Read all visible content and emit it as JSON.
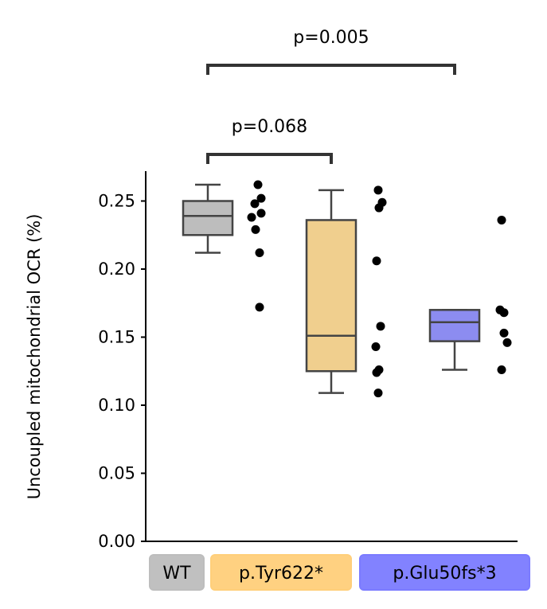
{
  "chart_data": {
    "type": "box",
    "ylabel": "Uncoupled mitochondrial OCR (%)",
    "xlabel": "",
    "ylim": [
      0.0,
      0.27
    ],
    "yticks": [
      "0.00",
      "0.05",
      "0.10",
      "0.15",
      "0.20",
      "0.25"
    ],
    "grid": false,
    "categories": [
      {
        "label": "WT",
        "box_color": "#bdbdbd",
        "tag_color": "#bdbdbd"
      },
      {
        "label": "p.Tyr622*",
        "box_color": "#f0cf8e",
        "tag_color": "#ffcf7a"
      },
      {
        "label": "p.Glu50fs*3",
        "box_color": "#8c8cf0",
        "tag_color": "#7b7bff"
      }
    ],
    "boxes": [
      {
        "q1": 0.225,
        "median": 0.239,
        "q3": 0.25,
        "whisker_low": 0.212,
        "whisker_high": 0.262
      },
      {
        "q1": 0.125,
        "median": 0.151,
        "q3": 0.236,
        "whisker_low": 0.109,
        "whisker_high": 0.258
      },
      {
        "q1": 0.147,
        "median": 0.161,
        "q3": 0.17,
        "whisker_low": 0.126,
        "whisker_high": 0.17
      }
    ],
    "points": [
      [
        0.262,
        0.252,
        0.248,
        0.241,
        0.238,
        0.229,
        0.212,
        0.172
      ],
      [
        0.258,
        0.249,
        0.245,
        0.206,
        0.158,
        0.143,
        0.126,
        0.124,
        0.109
      ],
      [
        0.236,
        0.17,
        0.168,
        0.153,
        0.146,
        0.126
      ]
    ],
    "annotations": [
      {
        "text": "p=0.068",
        "from": 0,
        "to": 1
      },
      {
        "text": "p=0.005",
        "from": 0,
        "to": 2
      }
    ]
  }
}
